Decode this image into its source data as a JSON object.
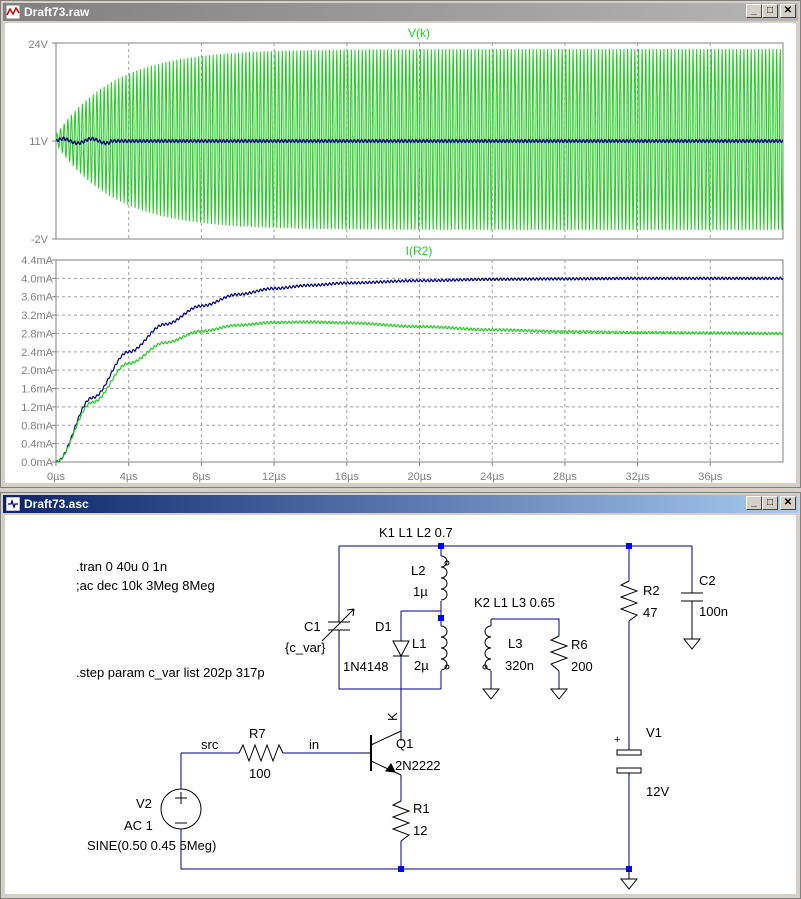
{
  "waveform_window": {
    "title": "Draft73.raw",
    "buttons": {
      "minimize": "_",
      "restore": "□",
      "close": "✕"
    }
  },
  "schematic_window": {
    "title": "Draft73.asc",
    "buttons": {
      "minimize": "_",
      "restore": "□",
      "close": "✕"
    }
  },
  "colors": {
    "trace_green": "#22cc22",
    "trace_blue": "#000080",
    "axis_text": "#808080",
    "grid": "#a0a0a0",
    "wire": "#000080",
    "component": "#000000",
    "node": "#0000ff"
  },
  "chart_data": [
    {
      "type": "line",
      "title": "V(k)",
      "y_ticks": [
        "24V",
        "11V",
        "-2V"
      ],
      "ylim": [
        -2,
        24
      ],
      "xlim_us": [
        0,
        40
      ],
      "series": [
        {
          "color": "#22cc22",
          "description_values": {
            "envelope_max_V": 23.2,
            "envelope_min_V": -0.8,
            "center_V": 11.2,
            "settle_time_us": 10
          }
        },
        {
          "color": "#000080",
          "description_values": {
            "center_V": 11.0,
            "ripple_V": 0.4
          }
        }
      ]
    },
    {
      "type": "line",
      "title": "I(R2)",
      "y_ticks": [
        "4.4mA",
        "4.0mA",
        "3.6mA",
        "3.2mA",
        "2.8mA",
        "2.4mA",
        "2.0mA",
        "1.6mA",
        "1.2mA",
        "0.8mA",
        "0.4mA",
        "0.0mA"
      ],
      "ylim": [
        0,
        4.4
      ],
      "x_ticks": [
        "0µs",
        "4µs",
        "8µs",
        "12µs",
        "16µs",
        "20µs",
        "24µs",
        "28µs",
        "32µs",
        "36µs"
      ],
      "xlim_us": [
        0,
        40
      ],
      "series": [
        {
          "color": "#000080",
          "x_us": [
            0,
            2,
            4,
            6,
            8,
            10,
            12,
            14,
            16,
            20,
            24,
            28,
            32,
            36,
            40
          ],
          "y_mA": [
            0.0,
            1.4,
            2.4,
            3.0,
            3.4,
            3.65,
            3.78,
            3.85,
            3.9,
            3.95,
            3.98,
            3.99,
            4.0,
            4.0,
            4.0
          ]
        },
        {
          "color": "#22cc22",
          "x_us": [
            0,
            2,
            4,
            6,
            8,
            10,
            12,
            14,
            16,
            20,
            24,
            28,
            32,
            36,
            40
          ],
          "y_mA": [
            0.0,
            1.3,
            2.15,
            2.6,
            2.85,
            2.98,
            3.04,
            3.05,
            3.03,
            2.95,
            2.88,
            2.84,
            2.82,
            2.81,
            2.8
          ]
        }
      ]
    }
  ],
  "schematic": {
    "directives": {
      "tran": ".tran 0 40u 0 1n",
      "ac": ";ac dec 10k 3Meg 8Meg",
      "step": ".step param c_var list 202p 317p",
      "k1": "K1 L1 L2 0.7",
      "k2": "K2 L1 L3 0.65"
    },
    "components": {
      "l2": {
        "name": "L2",
        "value": "1µ"
      },
      "l1": {
        "name": "L1",
        "value": "2µ"
      },
      "l3": {
        "name": "L3",
        "value": "320n"
      },
      "c1": {
        "name": "C1",
        "value": "{c_var}"
      },
      "d1": {
        "name": "D1",
        "value": "1N4148"
      },
      "r6": {
        "name": "R6",
        "value": "200"
      },
      "r2": {
        "name": "R2",
        "value": "47"
      },
      "c2": {
        "name": "C2",
        "value": "100n"
      },
      "v1": {
        "name": "V1",
        "value": "12V"
      },
      "r7": {
        "name": "R7",
        "value": "100"
      },
      "q1": {
        "name": "Q1",
        "value": "2N2222"
      },
      "r1": {
        "name": "R1",
        "value": "12"
      },
      "v2": {
        "name": "V2",
        "value": "AC 1",
        "value2": "SINE(0.50 0.45 5Meg)"
      }
    },
    "nets": {
      "src": "src",
      "in": "in",
      "k": "K"
    },
    "v1_plus": "+"
  }
}
